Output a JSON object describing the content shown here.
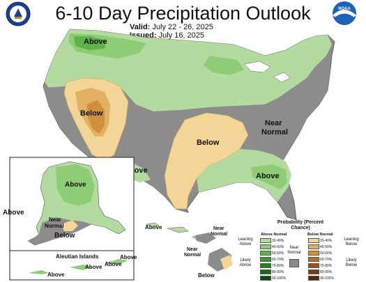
{
  "header": {
    "title": "6-10 Day Precipitation Outlook",
    "valid_label": "Valid:",
    "valid_value": "July 22 - 26, 2025",
    "issued_label": "Issued:",
    "issued_value": "July 16, 2025"
  },
  "logos": {
    "left": "commerce-seal",
    "right": "noaa-logo",
    "right_text": "NOAA"
  },
  "map": {
    "conus_labels": [
      "Above",
      "Below",
      "Below",
      "Near Normal",
      "Above",
      "Above"
    ],
    "alaska_labels": [
      "Above",
      "Above",
      "Near Normal",
      "Below"
    ],
    "aleutian_title": "Aleutian Islands",
    "aleutian_labels": [
      "Above",
      "Above",
      "Above",
      "Above"
    ],
    "hawaii_labels": [
      "Above",
      "Near Normal",
      "Near Normal",
      "Below"
    ]
  },
  "legend": {
    "title": "Probability (Percent Chance)",
    "above_header": "Above Normal",
    "below_header": "Below Normal",
    "near_label": "Near Normal",
    "leaning_above": "Leaning Above",
    "likely_above": "Likely Above",
    "leaning_below": "Leaning Below",
    "likely_below": "Likely Below",
    "above_bins": [
      {
        "range": "33-40%",
        "color": "#b3dba0"
      },
      {
        "range": "40-50%",
        "color": "#8fcc76"
      },
      {
        "range": "50-60%",
        "color": "#5fb34a"
      },
      {
        "range": "60-70%",
        "color": "#3c9a33"
      },
      {
        "range": "70-80%",
        "color": "#26802a"
      },
      {
        "range": "80-90%",
        "color": "#166a1f"
      },
      {
        "range": "90-100%",
        "color": "#0b4d14"
      }
    ],
    "below_bins": [
      {
        "range": "33-40%",
        "color": "#f2d597"
      },
      {
        "range": "40-50%",
        "color": "#e2b063"
      },
      {
        "range": "50-60%",
        "color": "#d08f3a"
      },
      {
        "range": "60-70%",
        "color": "#b86f26"
      },
      {
        "range": "70-80%",
        "color": "#9a521a"
      },
      {
        "range": "80-90%",
        "color": "#7a3a12"
      },
      {
        "range": "90-100%",
        "color": "#58260b"
      }
    ],
    "near_color": "#8c8c8c"
  }
}
